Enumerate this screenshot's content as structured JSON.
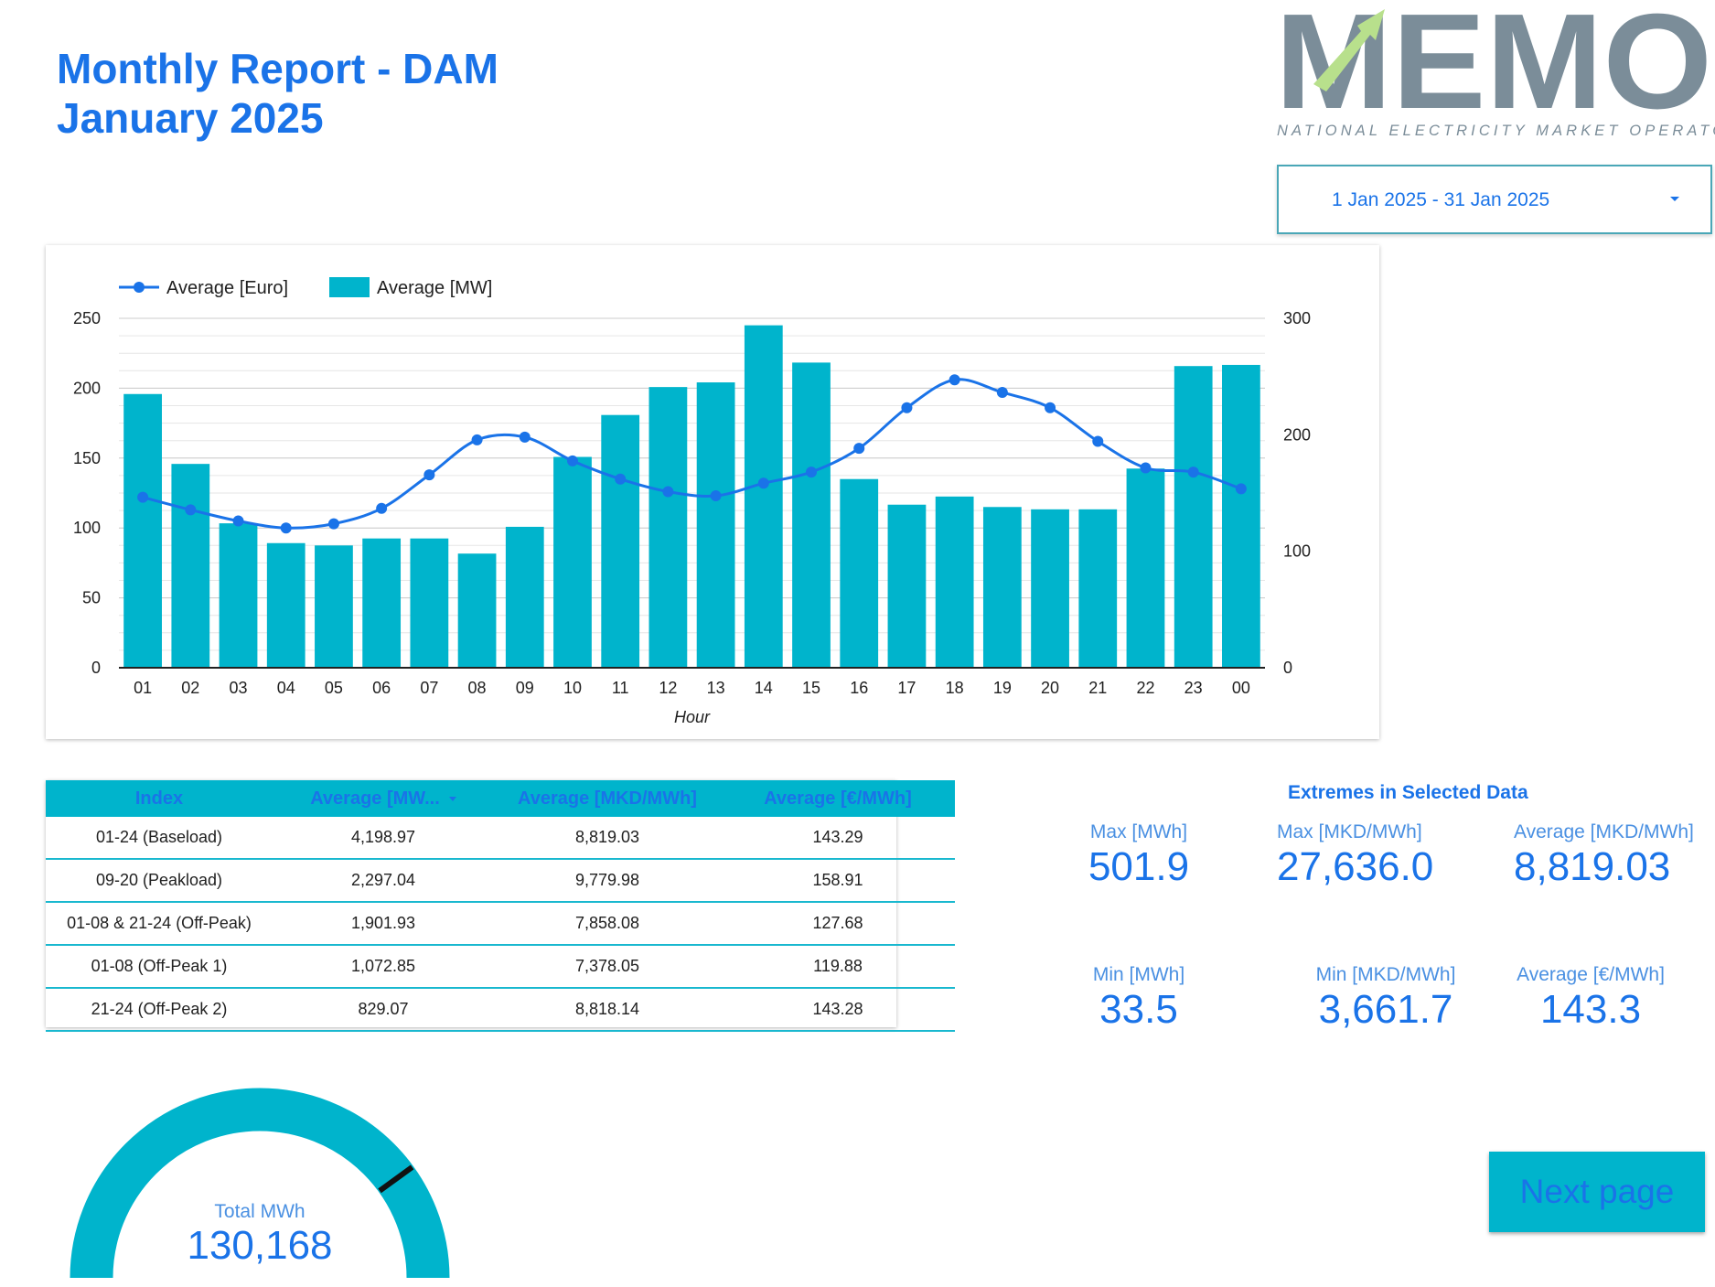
{
  "header": {
    "title_line1": "Monthly Report - DAM",
    "title_line2": "January 2025"
  },
  "logo": {
    "text": "MEMO",
    "subtitle": "NATIONAL ELECTRICITY MARKET OPERATOR"
  },
  "date_range": {
    "value": "1 Jan 2025 - 31 Jan 2025"
  },
  "colors": {
    "accent": "#1a73e8",
    "bar": "#00b4cc",
    "logo_gray": "#7b8d99",
    "logo_green": "#b8e08c"
  },
  "chart_data": {
    "type": "bar",
    "categories": [
      "01",
      "02",
      "03",
      "04",
      "05",
      "06",
      "07",
      "08",
      "09",
      "10",
      "11",
      "12",
      "13",
      "14",
      "15",
      "16",
      "17",
      "18",
      "19",
      "20",
      "21",
      "22",
      "23",
      "00"
    ],
    "series": [
      {
        "name": "Average [Euro]",
        "type": "line",
        "axis": "left",
        "values": [
          122,
          113,
          105,
          100,
          103,
          114,
          138,
          163,
          165,
          148,
          135,
          126,
          123,
          132,
          140,
          157,
          186,
          206,
          197,
          186,
          162,
          143,
          140,
          128
        ]
      },
      {
        "name": "Average [MW]",
        "type": "bar",
        "axis": "right",
        "values": [
          235,
          175,
          124,
          107,
          105,
          111,
          111,
          98,
          121,
          181,
          217,
          241,
          245,
          294,
          262,
          162,
          140,
          147,
          138,
          136,
          136,
          171,
          259,
          260
        ]
      }
    ],
    "xlabel": "Hour",
    "y_left": {
      "ticks": [
        "0",
        "50",
        "100",
        "150",
        "200",
        "250"
      ],
      "lim": [
        0,
        250
      ]
    },
    "y_right": {
      "ticks": [
        "0",
        "100",
        "200",
        "300"
      ],
      "lim": [
        0,
        300
      ]
    },
    "legend": "top-left"
  },
  "table": {
    "headers": [
      "Index",
      "Average [MW...",
      "Average [MKD/MWh]",
      "Average [€/MWh]"
    ],
    "rows": [
      [
        "01-24 (Baseload)",
        "4,198.97",
        "8,819.03",
        "143.29"
      ],
      [
        "09-20 (Peakload)",
        "2,297.04",
        "9,779.98",
        "158.91"
      ],
      [
        "01-08 & 21-24 (Off-Peak)",
        "1,901.93",
        "7,858.08",
        "127.68"
      ],
      [
        "01-08 (Off-Peak 1)",
        "1,072.85",
        "7,378.05",
        "119.88"
      ],
      [
        "21-24 (Off-Peak 2)",
        "829.07",
        "8,818.14",
        "143.28"
      ]
    ]
  },
  "extremes": {
    "title": "Extremes in Selected Data",
    "max_mwh": {
      "label": "Max [MWh]",
      "value": "501.9"
    },
    "max_mkd": {
      "label": "Max [MKD/MWh]",
      "value": "27,636.0"
    },
    "avg_mkd": {
      "label": "Average [MKD/MWh]",
      "value": "8,819.03"
    },
    "min_mwh": {
      "label": "Min [MWh]",
      "value": "33.5"
    },
    "min_mkd": {
      "label": "Min [MKD/MWh]",
      "value": "3,661.7"
    },
    "avg_eur": {
      "label": "Average [€/MWh]",
      "value": "143.3"
    }
  },
  "gauge": {
    "label": "Total MWh",
    "value": "130,168",
    "fraction": 0.8
  },
  "next_button": {
    "label": "Next page"
  }
}
